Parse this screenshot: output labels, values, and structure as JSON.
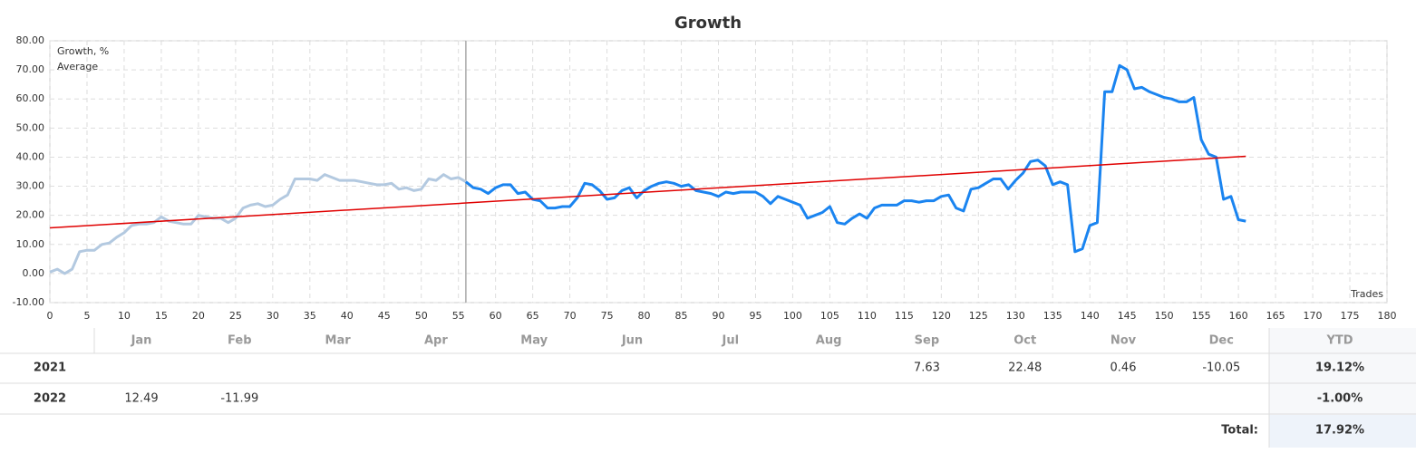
{
  "chart_data": {
    "type": "line",
    "title": "Growth",
    "x_label": "Trades",
    "xlim": [
      0,
      180
    ],
    "ylim": [
      -10,
      80
    ],
    "xticks": [
      0,
      5,
      10,
      15,
      20,
      25,
      30,
      35,
      40,
      45,
      50,
      55,
      60,
      65,
      70,
      75,
      80,
      85,
      90,
      95,
      100,
      105,
      110,
      115,
      120,
      125,
      130,
      135,
      140,
      145,
      150,
      155,
      160,
      165,
      170,
      175,
      180
    ],
    "yticks": [
      {
        "value": -10,
        "label": "-10.00"
      },
      {
        "value": 0,
        "label": "0.00"
      },
      {
        "value": 10,
        "label": "10.00"
      },
      {
        "value": 20,
        "label": "20.00"
      },
      {
        "value": 30,
        "label": "30.00"
      },
      {
        "value": 40,
        "label": "40.00"
      },
      {
        "value": 50,
        "label": "50.00"
      },
      {
        "value": 60,
        "label": "60.00"
      },
      {
        "value": 70,
        "label": "70.00"
      },
      {
        "value": 80,
        "label": "80.00"
      }
    ],
    "grid": true,
    "legend": "top-left",
    "divider_x": 56,
    "faded_color": "#b3c9e0",
    "series": [
      {
        "name": "Growth, %",
        "color": "#1a84f0",
        "x": [
          0,
          1,
          2,
          3,
          4,
          5,
          6,
          7,
          8,
          9,
          10,
          11,
          12,
          13,
          14,
          15,
          16,
          17,
          18,
          19,
          20,
          21,
          22,
          23,
          24,
          25,
          26,
          27,
          28,
          29,
          30,
          31,
          32,
          33,
          34,
          35,
          36,
          37,
          38,
          39,
          40,
          41,
          42,
          43,
          44,
          45,
          46,
          47,
          48,
          49,
          50,
          51,
          52,
          53,
          54,
          55,
          56,
          57,
          58,
          59,
          60,
          61,
          62,
          63,
          64,
          65,
          66,
          67,
          68,
          69,
          70,
          71,
          72,
          73,
          74,
          75,
          76,
          77,
          78,
          79,
          80,
          81,
          82,
          83,
          84,
          85,
          86,
          87,
          88,
          89,
          90,
          91,
          92,
          93,
          94,
          95,
          96,
          97,
          98,
          99,
          100,
          101,
          102,
          103,
          104,
          105,
          106,
          107,
          108,
          109,
          110,
          111,
          112,
          113,
          114,
          115,
          116,
          117,
          118,
          119,
          120,
          121,
          122,
          123,
          124,
          125,
          126,
          127,
          128,
          129,
          130,
          131,
          132,
          133,
          134,
          135,
          136,
          137,
          138,
          139,
          140,
          141,
          142,
          143,
          144,
          145,
          146,
          147,
          148,
          149,
          150,
          151,
          152,
          153,
          154,
          155,
          156,
          157,
          158,
          159,
          160,
          161
        ],
        "values": [
          0.5,
          1.5,
          0,
          1.5,
          7.5,
          8,
          8,
          10,
          10.5,
          12.5,
          14,
          16.5,
          17,
          17,
          17.5,
          19.5,
          18,
          17.5,
          17,
          17,
          20,
          19.5,
          19,
          19,
          17.5,
          19,
          22.5,
          23.5,
          24,
          23,
          23.5,
          25.5,
          27,
          32.5,
          32.5,
          32.5,
          32,
          34,
          33,
          32,
          32,
          32,
          31.5,
          31,
          30.5,
          30.5,
          31,
          29,
          29.5,
          28.5,
          29,
          32.5,
          32,
          34,
          32.5,
          33,
          31.5,
          29.5,
          29,
          27.5,
          29.5,
          30.5,
          30.5,
          27.5,
          28,
          25.5,
          25,
          22.5,
          22.5,
          23,
          23,
          26,
          31,
          30.5,
          28.5,
          25.5,
          26,
          28.5,
          29.5,
          26,
          28.5,
          30,
          31,
          31.5,
          31,
          30,
          30.5,
          28.5,
          28,
          27.5,
          26.5,
          28,
          27.5,
          28,
          28,
          28,
          26.5,
          24,
          26.5,
          25.5,
          24.5,
          23.5,
          19,
          20,
          21,
          23,
          17.5,
          17,
          19,
          20.5,
          19,
          22.5,
          23.5,
          23.5,
          23.5,
          25,
          25,
          24.5,
          25,
          25,
          26.5,
          27,
          22.5,
          21.5,
          29,
          29.5,
          31,
          32.5,
          32.5,
          29,
          32,
          34.5,
          38.5,
          39,
          37,
          30.5,
          31.5,
          30.5,
          7.5,
          8.5,
          16.5,
          17.5,
          62.5,
          62.5,
          71.5,
          70,
          63.5,
          64,
          62.5,
          61.5,
          60.5,
          60,
          59,
          59,
          60.5,
          46,
          41,
          40,
          25.5,
          26.5,
          18.5,
          18
        ]
      },
      {
        "name": "Average",
        "color": "#e00000",
        "x": [
          0,
          161
        ],
        "values": [
          15.7,
          40.3
        ]
      }
    ]
  },
  "table": {
    "columns": [
      "Jan",
      "Feb",
      "Mar",
      "Apr",
      "May",
      "Jun",
      "Jul",
      "Aug",
      "Sep",
      "Oct",
      "Nov",
      "Dec",
      "YTD"
    ],
    "rows": [
      {
        "label": "2021",
        "cells": [
          null,
          null,
          null,
          null,
          null,
          null,
          null,
          null,
          "7.63",
          "22.48",
          "0.46",
          "-10.05",
          "19.12%"
        ]
      },
      {
        "label": "2022",
        "cells": [
          "12.49",
          "-11.99",
          null,
          null,
          null,
          null,
          null,
          null,
          null,
          null,
          null,
          null,
          "-1.00%"
        ]
      }
    ],
    "total": {
      "label": "Total:",
      "value": "17.92%"
    }
  }
}
